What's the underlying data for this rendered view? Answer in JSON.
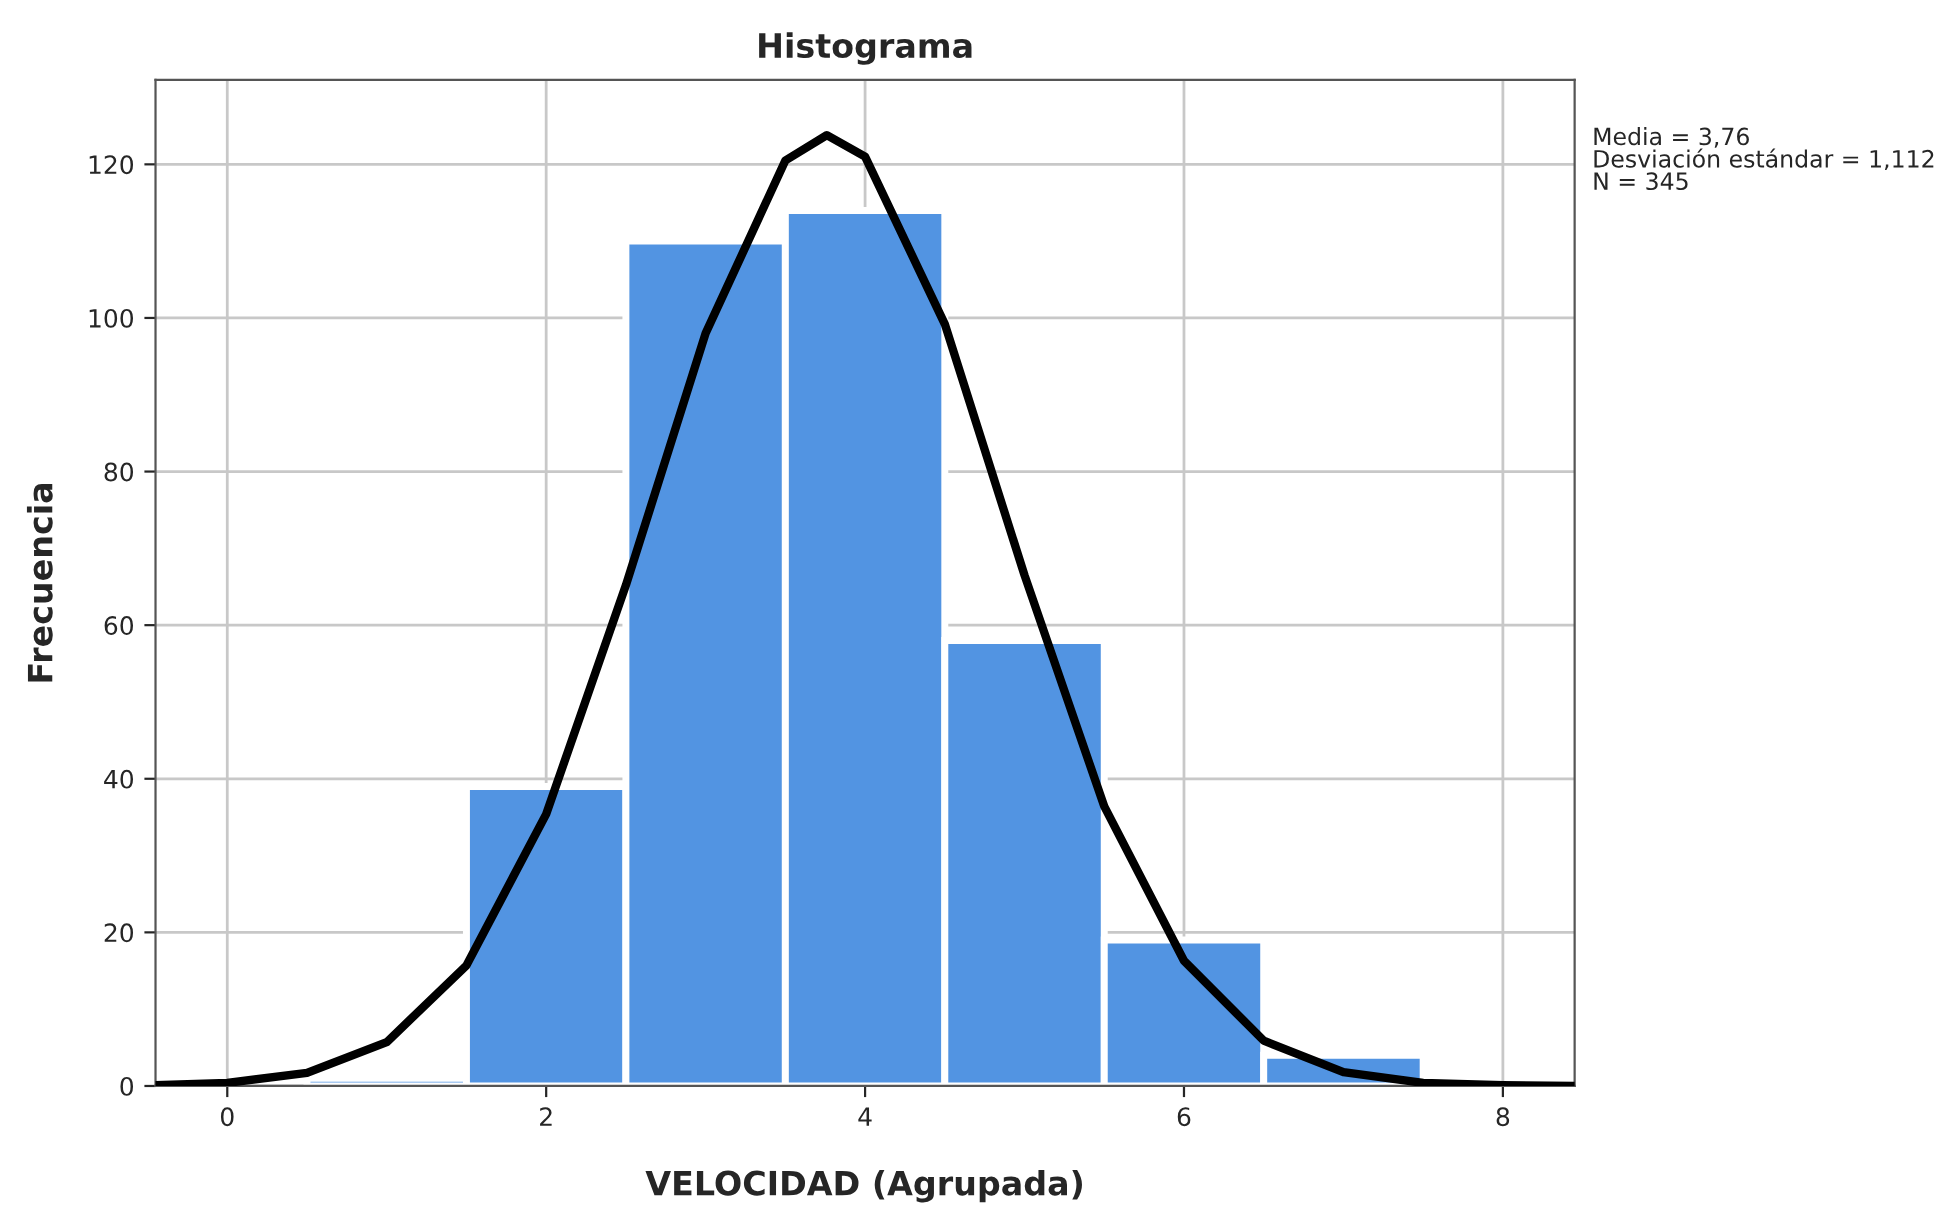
{
  "chart_data": {
    "type": "histogram",
    "title": "Histograma",
    "xlabel": "VELOCIDAD (Agrupada)",
    "ylabel": "Frecuencia",
    "bins": [
      0.5,
      1.5,
      2.5,
      3.5,
      4.5,
      5.5,
      6.5,
      7.5
    ],
    "values": [
      1,
      39,
      110,
      114,
      58,
      19,
      4
    ],
    "color": "#5294e2",
    "series": [
      {
        "type": "line",
        "color": "#000000",
        "x": [
          -0.45,
          0,
          0.5,
          1,
          1.5,
          2,
          2.5,
          3,
          3.5,
          3.76,
          4,
          4.5,
          5,
          5.5,
          6,
          6.5,
          7,
          7.5,
          8,
          8.45
        ],
        "values": [
          0.1,
          0.4,
          1.7,
          5.7,
          15.7,
          35.4,
          65.2,
          98,
          120.5,
          123.8,
          121,
          99.2,
          66.5,
          36.4,
          16.3,
          5.9,
          1.8,
          0.4,
          0.1,
          0
        ]
      }
    ],
    "xlim": [
      -0.45,
      8.45
    ],
    "ylim": [
      0,
      131
    ],
    "xticks": [
      0,
      2,
      4,
      6,
      8
    ],
    "yticks": [
      0,
      20,
      40,
      60,
      80,
      100,
      120
    ],
    "grid": true,
    "annotations": [
      "Media = 3,76",
      "Desviación estándar = 1,112",
      "N = 345"
    ]
  }
}
